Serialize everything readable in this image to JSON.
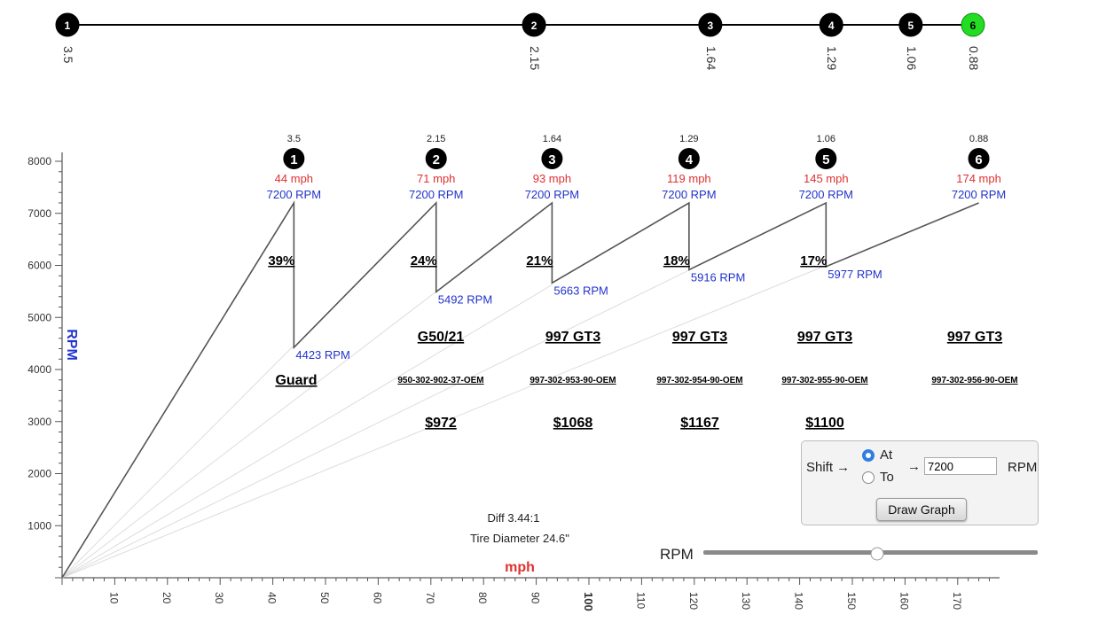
{
  "chart_data": {
    "type": "line",
    "title": "",
    "xlabel": "mph",
    "ylabel": "RPM",
    "xlim": [
      0,
      177
    ],
    "ylim": [
      0,
      8000
    ],
    "x_ticks": [
      "10",
      "20",
      "30",
      "40",
      "50",
      "60",
      "70",
      "80",
      "90",
      "100",
      "110",
      "120",
      "130",
      "140",
      "150",
      "160",
      "170"
    ],
    "y_ticks": [
      "1000",
      "2000",
      "3000",
      "4000",
      "5000",
      "6000",
      "7000",
      "8000"
    ],
    "grid": false,
    "gears": [
      {
        "number": "1",
        "ratio": "3.5",
        "top_speed": 44,
        "top_speed_label": "44 mph",
        "top_rpm": 7200,
        "top_rpm_label": "7200 RPM",
        "drop_rpm": 4423,
        "drop_rpm_label": "4423 RPM",
        "drop_pct": "39%",
        "name": "Guard",
        "part": "",
        "price": ""
      },
      {
        "number": "2",
        "ratio": "2.15",
        "top_speed": 71,
        "top_speed_label": "71 mph",
        "top_rpm": 7200,
        "top_rpm_label": "7200 RPM",
        "drop_rpm": 5492,
        "drop_rpm_label": "5492 RPM",
        "drop_pct": "24%",
        "name": "G50/21",
        "part": "950-302-902-37-OEM",
        "price": "$972"
      },
      {
        "number": "3",
        "ratio": "1.64",
        "top_speed": 93,
        "top_speed_label": "93 mph",
        "top_rpm": 7200,
        "top_rpm_label": "7200 RPM",
        "drop_rpm": 5663,
        "drop_rpm_label": "5663 RPM",
        "drop_pct": "21%",
        "name": "997 GT3",
        "part": "997-302-953-90-OEM",
        "price": "$1068"
      },
      {
        "number": "4",
        "ratio": "1.29",
        "top_speed": 119,
        "top_speed_label": "119 mph",
        "top_rpm": 7200,
        "top_rpm_label": "7200 RPM",
        "drop_rpm": 5916,
        "drop_rpm_label": "5916 RPM",
        "drop_pct": "18%",
        "name": "997 GT3",
        "part": "997-302-954-90-OEM",
        "price": "$1167"
      },
      {
        "number": "5",
        "ratio": "1.06",
        "top_speed": 145,
        "top_speed_label": "145 mph",
        "top_rpm": 7200,
        "top_rpm_label": "7200 RPM",
        "drop_rpm": 5977,
        "drop_rpm_label": "5977 RPM",
        "drop_pct": "17%",
        "name": "997 GT3",
        "part": "997-302-955-90-OEM",
        "price": "$1100"
      },
      {
        "number": "6",
        "ratio": "0.88",
        "top_speed": 174,
        "top_speed_label": "174 mph",
        "top_rpm": 7200,
        "top_rpm_label": "7200 RPM",
        "drop_rpm": null,
        "drop_rpm_label": "",
        "drop_pct": "",
        "name": "997 GT3",
        "part": "997-302-956-90-OEM",
        "price": ""
      }
    ],
    "series": [
      {
        "values": [
          [
            0,
            0
          ],
          [
            44,
            7200
          ],
          [
            44,
            4423
          ],
          [
            71,
            7200
          ],
          [
            71,
            5492
          ],
          [
            93,
            7200
          ],
          [
            93,
            5663
          ],
          [
            119,
            7200
          ],
          [
            119,
            5916
          ],
          [
            145,
            7200
          ],
          [
            145,
            5977
          ],
          [
            174,
            7200
          ]
        ]
      }
    ],
    "annotations": {
      "diff": "Diff 3.44:1",
      "tire": "Tire Diameter 24.6\""
    },
    "ratio_scale": {
      "ratios": [
        "3.5",
        "2.15",
        "1.64",
        "1.29",
        "1.06",
        "0.88"
      ],
      "selected_index": 5
    },
    "colors": {
      "speed": "#e03030",
      "rpm": "#2233cc",
      "line": "#555555",
      "ghost_line": "#dddddd",
      "selected_gear": "#22dd22"
    }
  },
  "controls": {
    "shift_label": "Shift →",
    "at_label": "At",
    "to_label": "To",
    "selected_mode": "At",
    "arrow_label": "→",
    "rpm_value": "7200",
    "rpm_unit": "RPM",
    "draw_button": "Draw Graph",
    "slider_label": "RPM",
    "slider_fraction": 0.52
  }
}
